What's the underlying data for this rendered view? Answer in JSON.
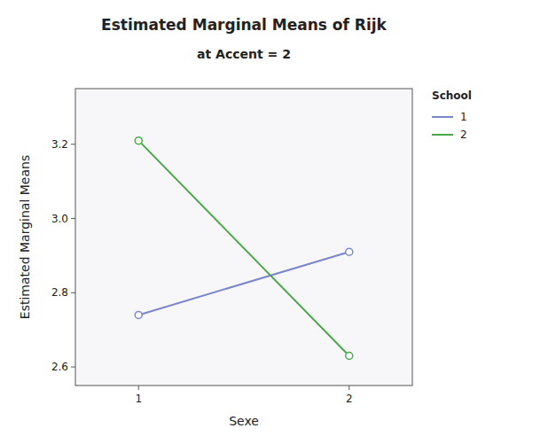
{
  "chart_data": {
    "type": "line",
    "title": "Estimated Marginal Means of Rijk",
    "subtitle": "at Accent = 2",
    "x_label": "Sexe",
    "y_label": "Estimated Marginal Means",
    "x": [
      1,
      2
    ],
    "series": [
      {
        "name": "1",
        "color": "#7b86c8",
        "values": [
          2.74,
          2.91
        ],
        "marker": "circle",
        "line_style": "solid"
      },
      {
        "name": "2",
        "color": "#4aa84a",
        "values": [
          3.21,
          2.63
        ],
        "marker": "circle",
        "line_style": "solid"
      }
    ],
    "legend_title": "School",
    "legend": "right",
    "xlim": [
      0.7,
      2.3
    ],
    "ylim": [
      2.55,
      3.35
    ],
    "xticks": [
      1,
      2
    ],
    "yticks": [
      2.6,
      2.8,
      {
        "value": 3.0,
        "label": "3.0"
      },
      3.2
    ],
    "grid": false
  }
}
